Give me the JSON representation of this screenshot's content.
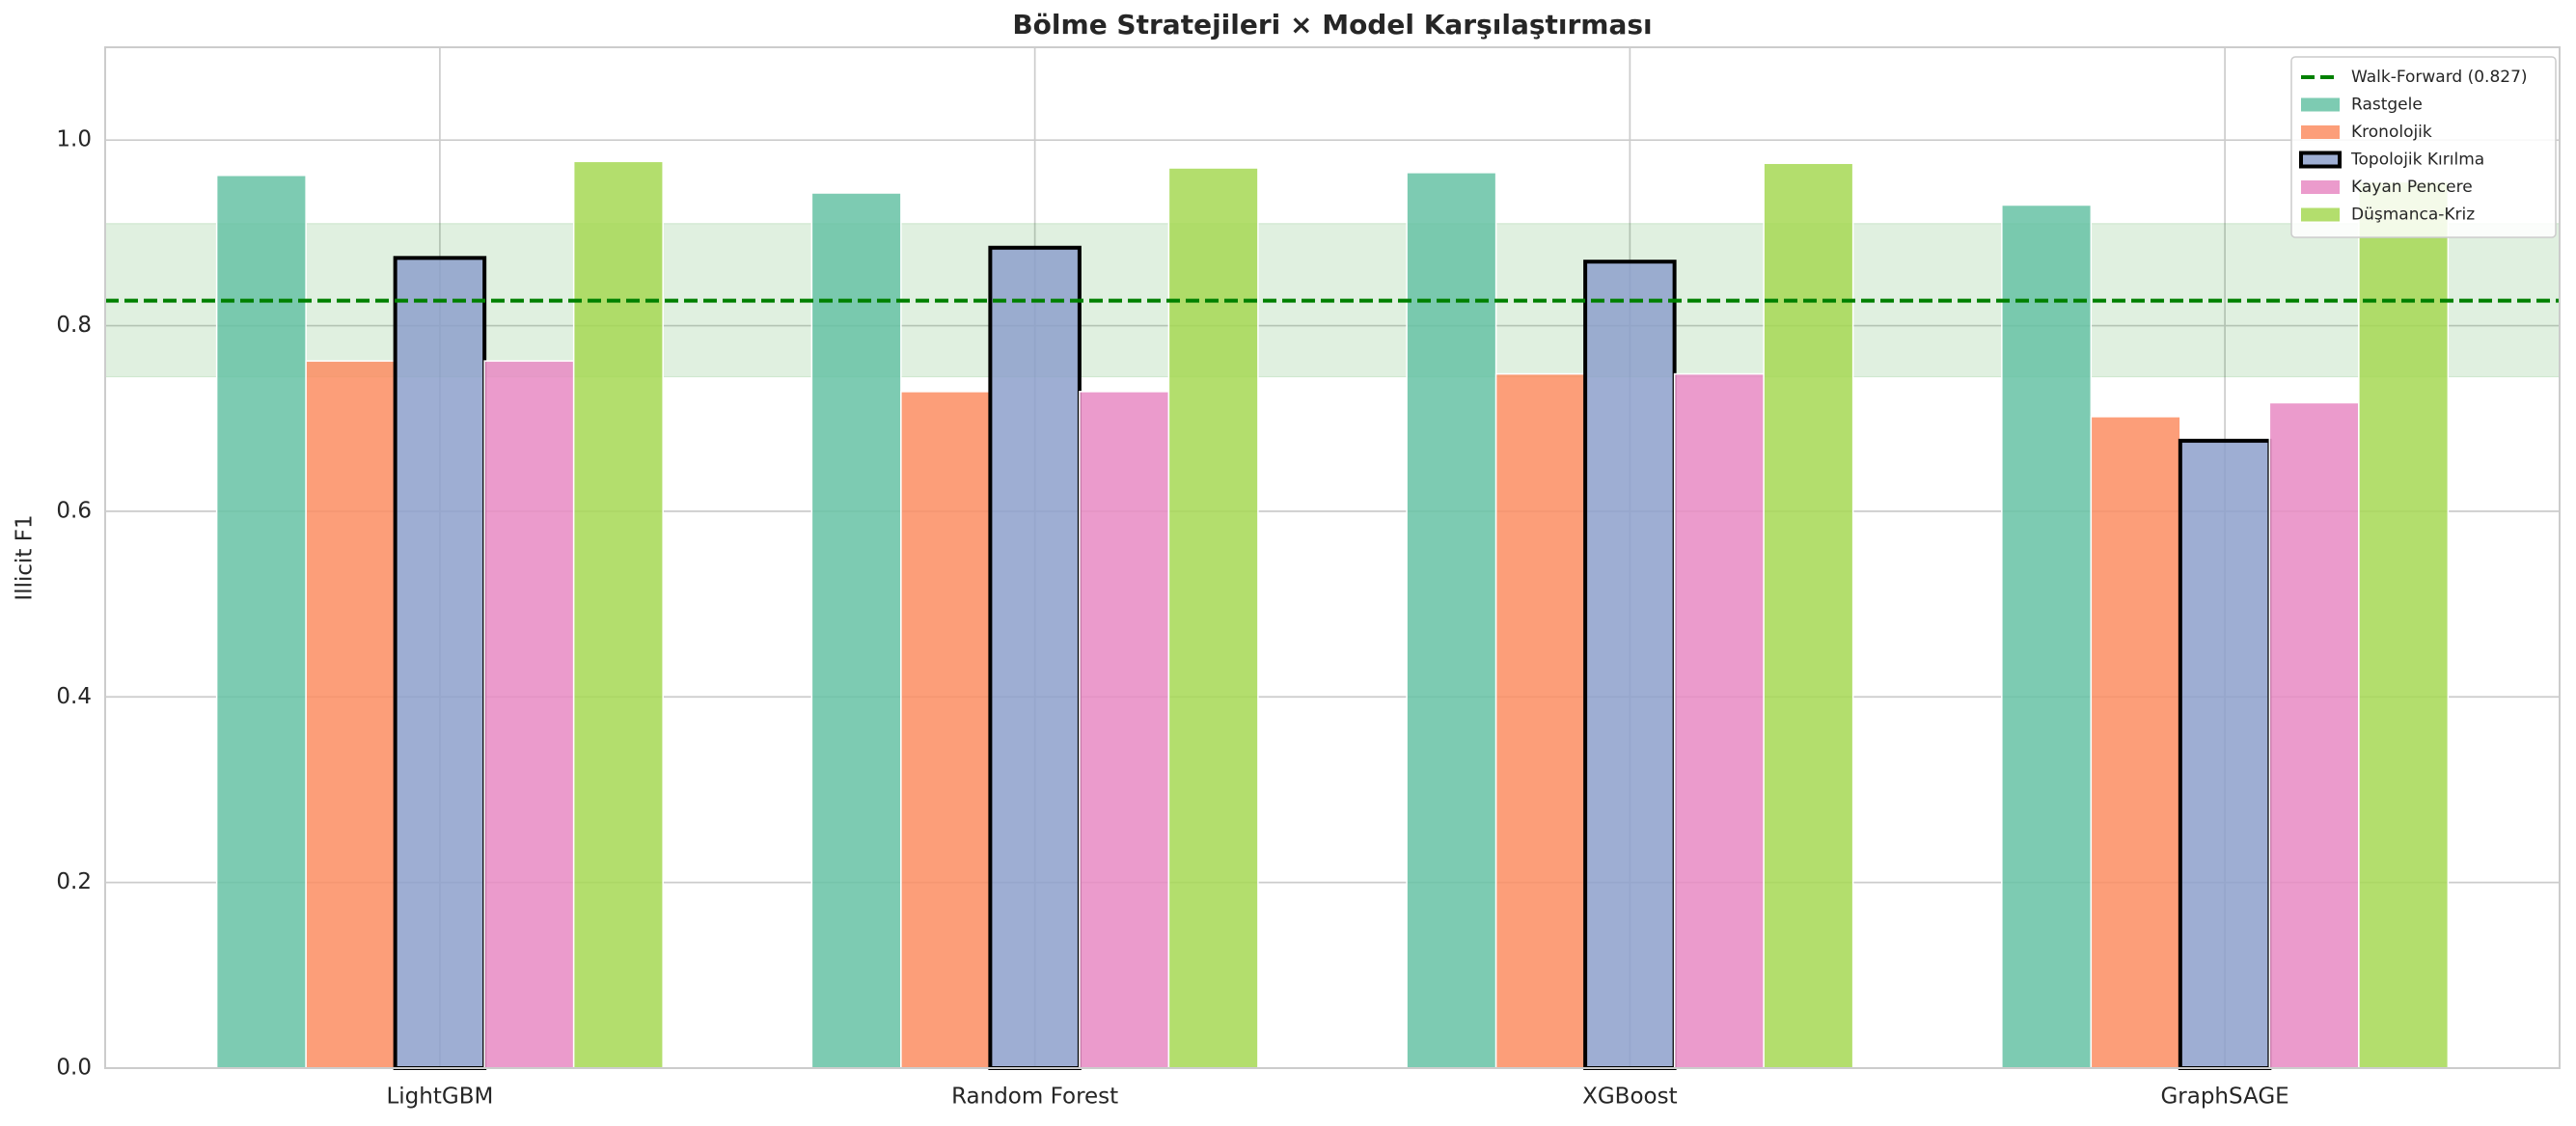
{
  "chart_data": {
    "type": "bar",
    "title": "Bölme Stratejileri × Model Karşılaştırması",
    "y_label": "Illicit F1",
    "categories": [
      "LightGBM",
      "Random Forest",
      "XGBoost",
      "GraphSAGE"
    ],
    "series": [
      {
        "name": "Rastgele",
        "color": "#66c2a5",
        "values": [
          0.962,
          0.943,
          0.965,
          0.93
        ]
      },
      {
        "name": "Kronolojik",
        "color": "#fc8d62",
        "values": [
          0.762,
          0.729,
          0.748,
          0.702
        ]
      },
      {
        "name": "Topolojik Kırılma",
        "color": "#8da0cb",
        "edgecolor": "#000000",
        "values": [
          0.873,
          0.884,
          0.869,
          0.676
        ]
      },
      {
        "name": "Kayan Pencere",
        "color": "#e78ac3",
        "values": [
          0.762,
          0.729,
          0.748,
          0.717
        ]
      },
      {
        "name": "Düşmanca-Kriz",
        "color": "#a6d854",
        "values": [
          0.977,
          0.97,
          0.975,
          0.955
        ]
      }
    ],
    "reference_line": {
      "label": "Walk-Forward (0.827)",
      "value": 0.827,
      "color": "#008000",
      "band": [
        0.745,
        0.91
      ]
    },
    "ylim": [
      0,
      1.1
    ],
    "yticks": [
      {
        "value": 0,
        "label": "0.0"
      },
      0.2,
      0.4,
      0.6,
      0.8,
      {
        "value": 1,
        "label": "1.0"
      }
    ],
    "grid": true,
    "legend": "upper right"
  }
}
